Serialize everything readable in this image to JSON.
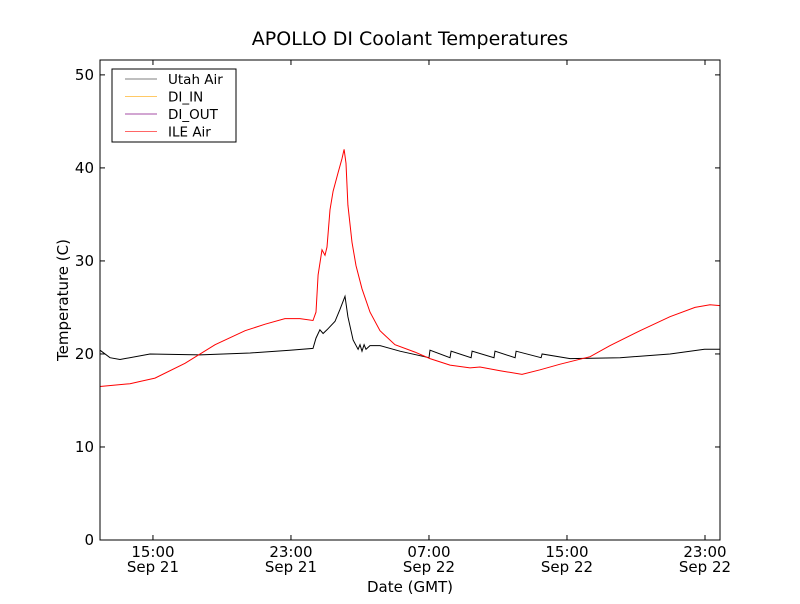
{
  "chart_data": {
    "type": "line",
    "title": "APOLLO DI Coolant Temperatures",
    "xlabel": "Date (GMT)",
    "ylabel": "Temperature (C)",
    "x_units": "hours since Sep 21 00:00 GMT",
    "xlim": [
      11.93,
      47.87
    ],
    "ylim": [
      0,
      51.6
    ],
    "grid": false,
    "legend_placement": "top-left",
    "x_ticks": [
      {
        "value": 15,
        "time": "15:00",
        "date": "Sep 21"
      },
      {
        "value": 23,
        "time": "23:00",
        "date": "Sep 21"
      },
      {
        "value": 31,
        "time": "07:00",
        "date": "Sep 22"
      },
      {
        "value": 39,
        "time": "15:00",
        "date": "Sep 22"
      },
      {
        "value": 47,
        "time": "23:00",
        "date": "Sep 22"
      }
    ],
    "y_ticks": [
      0,
      10,
      20,
      30,
      40,
      50
    ],
    "series": [
      {
        "name": "Utah Air",
        "color": "#000000",
        "legend_color": "#7f7f7f",
        "points": [
          [
            11.93,
            20.4
          ],
          [
            12.51,
            19.6
          ],
          [
            13.09,
            19.4
          ],
          [
            14.83,
            20.0
          ],
          [
            17.73,
            19.9
          ],
          [
            20.63,
            20.1
          ],
          [
            22.94,
            20.4
          ],
          [
            24.28,
            20.6
          ],
          [
            24.45,
            21.7
          ],
          [
            24.68,
            22.6
          ],
          [
            24.86,
            22.2
          ],
          [
            25.09,
            22.6
          ],
          [
            25.55,
            23.5
          ],
          [
            25.84,
            24.8
          ],
          [
            26.13,
            26.2
          ],
          [
            26.3,
            24.0
          ],
          [
            26.6,
            21.5
          ],
          [
            26.89,
            20.5
          ],
          [
            27.0,
            21.0
          ],
          [
            27.12,
            20.3
          ],
          [
            27.24,
            21.0
          ],
          [
            27.35,
            20.5
          ],
          [
            27.58,
            20.9
          ],
          [
            28.16,
            20.9
          ],
          [
            29.32,
            20.3
          ],
          [
            31.0,
            19.6
          ],
          [
            31.06,
            20.4
          ],
          [
            32.22,
            19.6
          ],
          [
            32.28,
            20.3
          ],
          [
            33.44,
            19.6
          ],
          [
            33.5,
            20.3
          ],
          [
            34.77,
            19.6
          ],
          [
            34.83,
            20.3
          ],
          [
            35.99,
            19.6
          ],
          [
            36.05,
            20.3
          ],
          [
            37.5,
            19.6
          ],
          [
            37.56,
            20.0
          ],
          [
            39.18,
            19.5
          ],
          [
            42.08,
            19.6
          ],
          [
            44.97,
            20.0
          ],
          [
            46.97,
            20.5
          ],
          [
            47.87,
            20.5
          ]
        ]
      },
      {
        "name": "DI_IN",
        "color": "#ffa500",
        "legend_color": "#ffc966",
        "points": []
      },
      {
        "name": "DI_OUT",
        "color": "#800080",
        "legend_color": "#a64ca6",
        "points": []
      },
      {
        "name": "ILE Air",
        "color": "#ff0000",
        "legend_color": "#ff6666",
        "points": [
          [
            11.93,
            16.5
          ],
          [
            13.67,
            16.8
          ],
          [
            15.12,
            17.4
          ],
          [
            16.86,
            19.0
          ],
          [
            18.6,
            21.0
          ],
          [
            20.34,
            22.5
          ],
          [
            21.5,
            23.2
          ],
          [
            22.65,
            23.8
          ],
          [
            23.52,
            23.8
          ],
          [
            24.28,
            23.6
          ],
          [
            24.45,
            24.5
          ],
          [
            24.57,
            28.5
          ],
          [
            24.8,
            31.2
          ],
          [
            24.97,
            30.6
          ],
          [
            25.09,
            31.5
          ],
          [
            25.26,
            35.5
          ],
          [
            25.44,
            37.5
          ],
          [
            25.73,
            39.5
          ],
          [
            25.96,
            41.0
          ],
          [
            26.08,
            42.0
          ],
          [
            26.19,
            40.5
          ],
          [
            26.3,
            36.0
          ],
          [
            26.54,
            32.0
          ],
          [
            26.77,
            29.5
          ],
          [
            27.12,
            27.0
          ],
          [
            27.58,
            24.5
          ],
          [
            28.16,
            22.5
          ],
          [
            29.03,
            21.0
          ],
          [
            30.19,
            20.2
          ],
          [
            31.06,
            19.5
          ],
          [
            32.22,
            18.8
          ],
          [
            33.38,
            18.5
          ],
          [
            33.96,
            18.6
          ],
          [
            35.12,
            18.2
          ],
          [
            36.39,
            17.8
          ],
          [
            37.44,
            18.3
          ],
          [
            38.6,
            18.9
          ],
          [
            40.34,
            19.7
          ],
          [
            41.5,
            20.9
          ],
          [
            43.24,
            22.5
          ],
          [
            44.97,
            24.0
          ],
          [
            46.42,
            25.0
          ],
          [
            47.29,
            25.3
          ],
          [
            47.87,
            25.2
          ]
        ]
      }
    ]
  }
}
